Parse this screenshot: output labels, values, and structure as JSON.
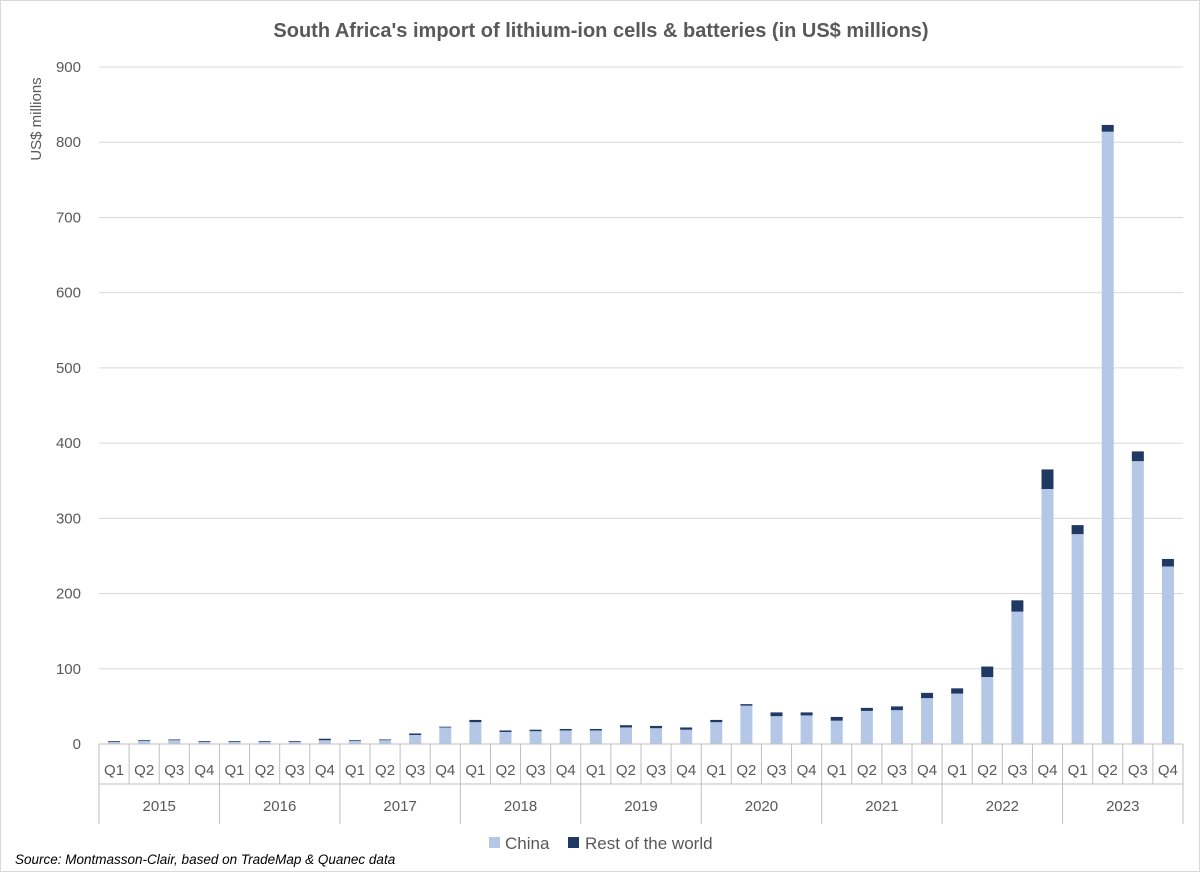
{
  "chart_data": {
    "type": "bar",
    "stacked": true,
    "title": "South Africa's import of lithium-ion cells & batteries (in US$ millions)",
    "ylabel": "US$ millions",
    "xlabel": "",
    "ylim": [
      0,
      900
    ],
    "yticks": [
      0,
      100,
      200,
      300,
      400,
      500,
      600,
      700,
      800,
      900
    ],
    "grid": true,
    "legend_position": "bottom",
    "years": [
      "2015",
      "2016",
      "2017",
      "2018",
      "2019",
      "2020",
      "2021",
      "2022",
      "2023"
    ],
    "quarters": [
      "Q1",
      "Q2",
      "Q3",
      "Q4"
    ],
    "series": [
      {
        "name": "China",
        "color": "#b4c7e7",
        "values": [
          3,
          4,
          5,
          3,
          3,
          3,
          3,
          5,
          4,
          5,
          12,
          22,
          29,
          16,
          17,
          18,
          18,
          22,
          21,
          19,
          29,
          51,
          37,
          38,
          31,
          44,
          45,
          61,
          67,
          89,
          176,
          339,
          279,
          814,
          376,
          236
        ]
      },
      {
        "name": "Rest of the world",
        "color": "#203864",
        "values": [
          1,
          1,
          1,
          1,
          1,
          1,
          1,
          2,
          1,
          1,
          2,
          1,
          3,
          2,
          2,
          2,
          2,
          3,
          3,
          3,
          3,
          2,
          5,
          4,
          5,
          4,
          5,
          7,
          7,
          14,
          15,
          26,
          12,
          9,
          13,
          10
        ]
      }
    ],
    "source": "Source: Montmasson-Clair, based on TradeMap & Quanec data"
  }
}
